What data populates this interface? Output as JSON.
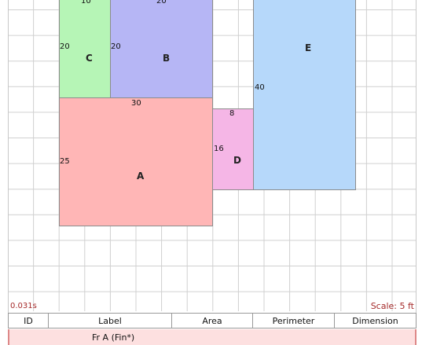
{
  "canvas": {
    "grid_color": "#d0d0d0",
    "shapes": [
      {
        "id": "A",
        "label": "A",
        "color": "#ffb6b6",
        "dims": {
          "width": "30",
          "height": "25"
        }
      },
      {
        "id": "B",
        "label": "B",
        "color": "#b6b6f5",
        "dims": {
          "width": "20",
          "height": "20"
        }
      },
      {
        "id": "C",
        "label": "C",
        "color": "#b6f5b6",
        "dims": {
          "width": "10",
          "height": "20"
        }
      },
      {
        "id": "D",
        "label": "D",
        "color": "#f5b6e6",
        "dims": {
          "width": "8",
          "height": "16"
        }
      },
      {
        "id": "E",
        "label": "E",
        "color": "#b6d8fa",
        "dims": {
          "height": "40"
        }
      }
    ]
  },
  "footer": {
    "timing": "0.031s",
    "scale": "Scale: 5 ft"
  },
  "table": {
    "headers": [
      "ID",
      "Label",
      "Area",
      "Perimeter",
      "Dimension"
    ],
    "rows": [
      {
        "label": "Fr A (Fin*)"
      }
    ]
  }
}
